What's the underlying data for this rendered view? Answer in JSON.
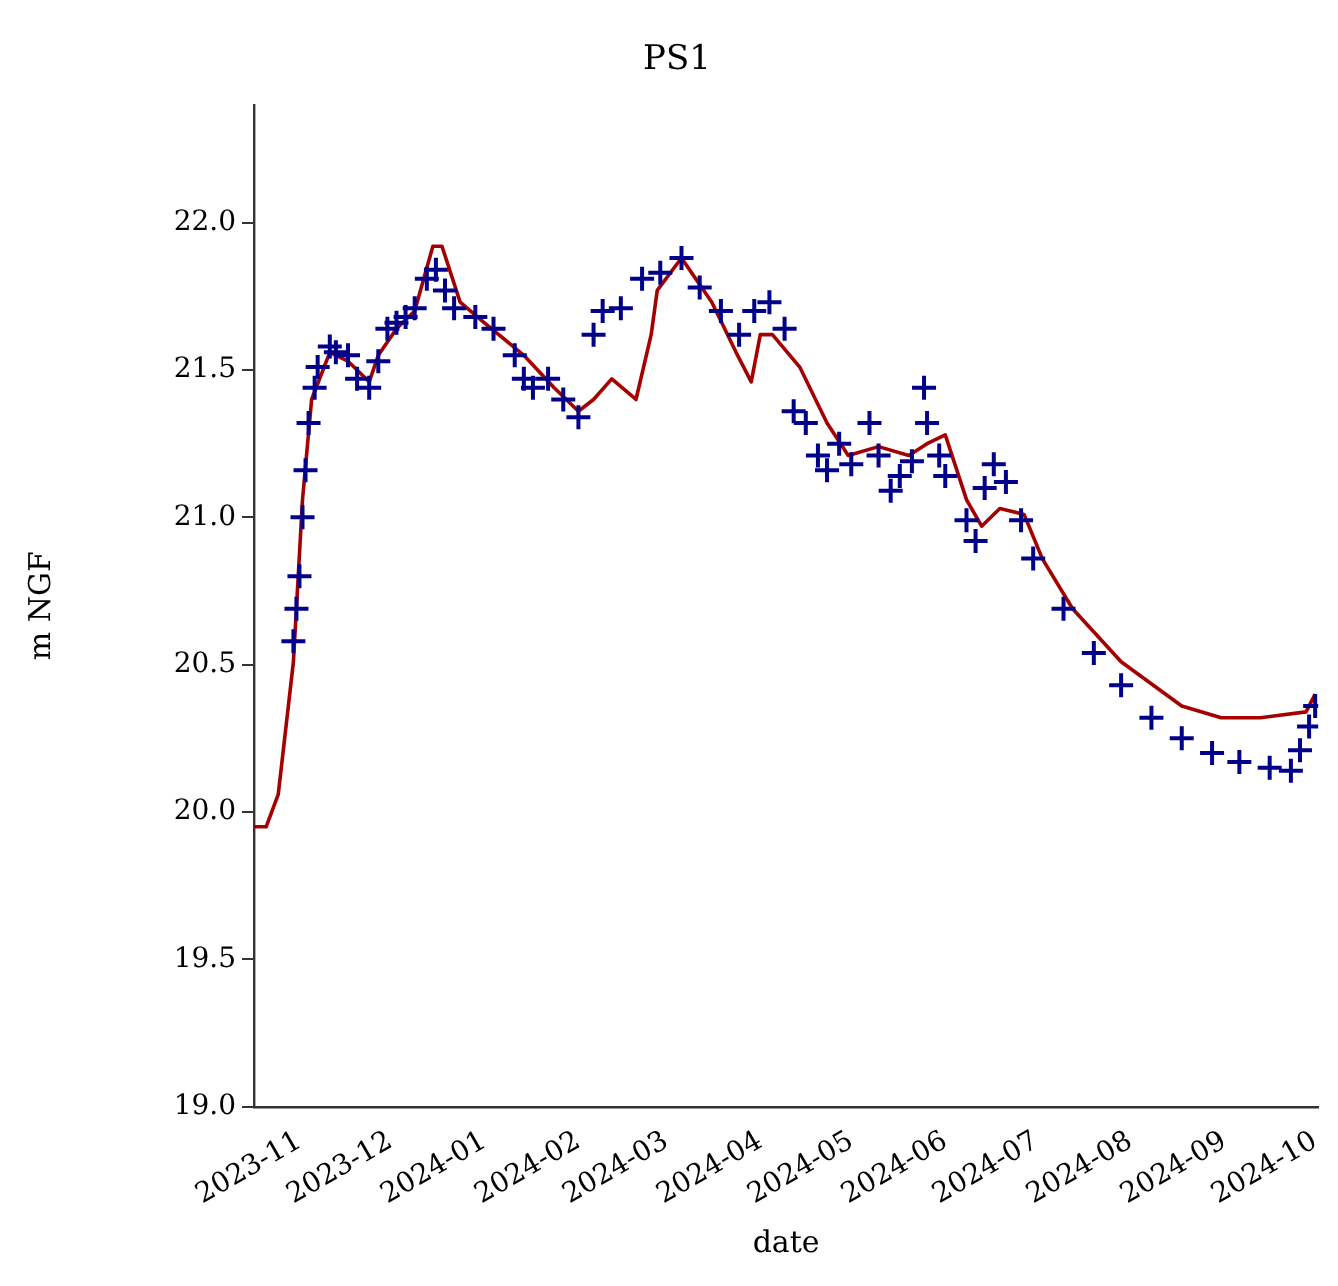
{
  "chart_data": {
    "type": "line",
    "title": "PS1",
    "xlabel": "date",
    "ylabel": "m NGF",
    "grid": false,
    "legend": false,
    "xlim": [
      "2023-10-17",
      "2024-10-02"
    ],
    "xticks": [
      {
        "value": "2023-11-01",
        "label": "2023-11"
      },
      {
        "value": "2023-12-01",
        "label": "2023-12"
      },
      {
        "value": "2024-01-01",
        "label": "2024-01"
      },
      {
        "value": "2024-02-01",
        "label": "2024-02"
      },
      {
        "value": "2024-03-01",
        "label": "2024-03"
      },
      {
        "value": "2024-04-01",
        "label": "2024-04"
      },
      {
        "value": "2024-05-01",
        "label": "2024-05"
      },
      {
        "value": "2024-06-01",
        "label": "2024-06"
      },
      {
        "value": "2024-07-01",
        "label": "2024-07"
      },
      {
        "value": "2024-08-01",
        "label": "2024-08"
      },
      {
        "value": "2024-09-01",
        "label": "2024-09"
      },
      {
        "value": "2024-10-01",
        "label": "2024-10"
      }
    ],
    "ylim": [
      19.0,
      22.4
    ],
    "yticks": [
      {
        "value": 19,
        "label": "19.0"
      },
      {
        "value": 19.5,
        "label": "19.5"
      },
      {
        "value": 20,
        "label": "20.0"
      },
      {
        "value": 20.5,
        "label": "20.5"
      },
      {
        "value": 21,
        "label": "21.0"
      },
      {
        "value": 21.5,
        "label": "21.5"
      },
      {
        "value": 22,
        "label": "22.0"
      }
    ],
    "series": [
      {
        "marker": "none",
        "color": "#a50000",
        "x": [
          "2023-10-17",
          "2023-10-21",
          "2023-10-25",
          "2023-10-30",
          "2023-11-02",
          "2023-11-05",
          "2023-11-11",
          "2023-11-17",
          "2023-11-24",
          "2023-11-27",
          "2023-12-03",
          "2023-12-09",
          "2023-12-15",
          "2023-12-18",
          "2023-12-24",
          "2024-01-01",
          "2024-01-14",
          "2024-01-24",
          "2024-02-01",
          "2024-02-06",
          "2024-02-12",
          "2024-02-20",
          "2024-02-25",
          "2024-02-27",
          "2024-03-06",
          "2024-03-16",
          "2024-03-24",
          "2024-03-29",
          "2024-04-01",
          "2024-04-05",
          "2024-04-14",
          "2024-04-23",
          "2024-04-30",
          "2024-05-10",
          "2024-05-20",
          "2024-05-26",
          "2024-06-01",
          "2024-06-08",
          "2024-06-13",
          "2024-06-19",
          "2024-06-27",
          "2024-07-03",
          "2024-07-13",
          "2024-07-29",
          "2024-08-18",
          "2024-08-31",
          "2024-09-13",
          "2024-09-28",
          "2024-10-01"
        ],
        "values": [
          19.95,
          19.95,
          20.06,
          20.51,
          21.06,
          21.4,
          21.56,
          21.53,
          21.46,
          21.55,
          21.64,
          21.7,
          21.92,
          21.92,
          21.73,
          21.66,
          21.55,
          21.44,
          21.36,
          21.4,
          21.47,
          21.4,
          21.62,
          21.77,
          21.88,
          21.73,
          21.56,
          21.46,
          21.62,
          21.62,
          21.51,
          21.32,
          21.21,
          21.24,
          21.21,
          21.25,
          21.28,
          21.06,
          20.97,
          21.03,
          21.01,
          20.86,
          20.69,
          20.51,
          20.36,
          20.32,
          20.32,
          20.34,
          20.4
        ]
      },
      {
        "type": "scatter",
        "marker": "cross",
        "color": "#00008b",
        "x": [
          "2023-10-30",
          "2023-10-31",
          "2023-11-01",
          "2023-11-02",
          "2023-11-03",
          "2023-11-04",
          "2023-11-06",
          "2023-11-07",
          "2023-11-11",
          "2023-11-13",
          "2023-11-17",
          "2023-11-20",
          "2023-11-24",
          "2023-11-27",
          "2023-11-30",
          "2023-12-03",
          "2023-12-06",
          "2023-12-09",
          "2023-12-13",
          "2023-12-16",
          "2023-12-19",
          "2023-12-22",
          "2023-12-29",
          "2024-01-04",
          "2024-01-11",
          "2024-01-14",
          "2024-01-17",
          "2024-01-22",
          "2024-01-27",
          "2024-02-01",
          "2024-02-06",
          "2024-02-09",
          "2024-02-15",
          "2024-02-22",
          "2024-02-28",
          "2024-03-06",
          "2024-03-12",
          "2024-03-19",
          "2024-03-25",
          "2024-03-30",
          "2024-04-04",
          "2024-04-09",
          "2024-04-12",
          "2024-04-16",
          "2024-04-20",
          "2024-04-23",
          "2024-04-27",
          "2024-05-01",
          "2024-05-07",
          "2024-05-10",
          "2024-05-14",
          "2024-05-17",
          "2024-05-21",
          "2024-05-25",
          "2024-05-26",
          "2024-05-30",
          "2024-06-01",
          "2024-06-08",
          "2024-06-11",
          "2024-06-14",
          "2024-06-17",
          "2024-06-21",
          "2024-06-26",
          "2024-06-30",
          "2024-07-10",
          "2024-07-20",
          "2024-07-29",
          "2024-08-08",
          "2024-08-18",
          "2024-08-28",
          "2024-09-06",
          "2024-09-16",
          "2024-09-23",
          "2024-09-26",
          "2024-09-29",
          "2024-10-01"
        ],
        "values": [
          20.58,
          20.69,
          20.8,
          21.0,
          21.16,
          21.32,
          21.44,
          21.51,
          21.58,
          21.56,
          21.55,
          21.47,
          21.44,
          21.53,
          21.64,
          21.66,
          21.68,
          21.71,
          21.81,
          21.84,
          21.77,
          21.71,
          21.68,
          21.64,
          21.55,
          21.47,
          21.44,
          21.47,
          21.4,
          21.34,
          21.62,
          21.7,
          21.71,
          21.81,
          21.83,
          21.88,
          21.78,
          21.7,
          21.62,
          21.7,
          21.73,
          21.64,
          21.36,
          21.32,
          21.21,
          21.16,
          21.25,
          21.18,
          21.32,
          21.21,
          21.09,
          21.14,
          21.19,
          21.44,
          21.32,
          21.21,
          21.14,
          20.99,
          20.92,
          21.1,
          21.18,
          21.12,
          20.99,
          20.86,
          20.69,
          20.54,
          20.43,
          20.32,
          20.25,
          20.2,
          20.17,
          20.15,
          20.14,
          20.21,
          20.29,
          20.36
        ]
      }
    ]
  }
}
